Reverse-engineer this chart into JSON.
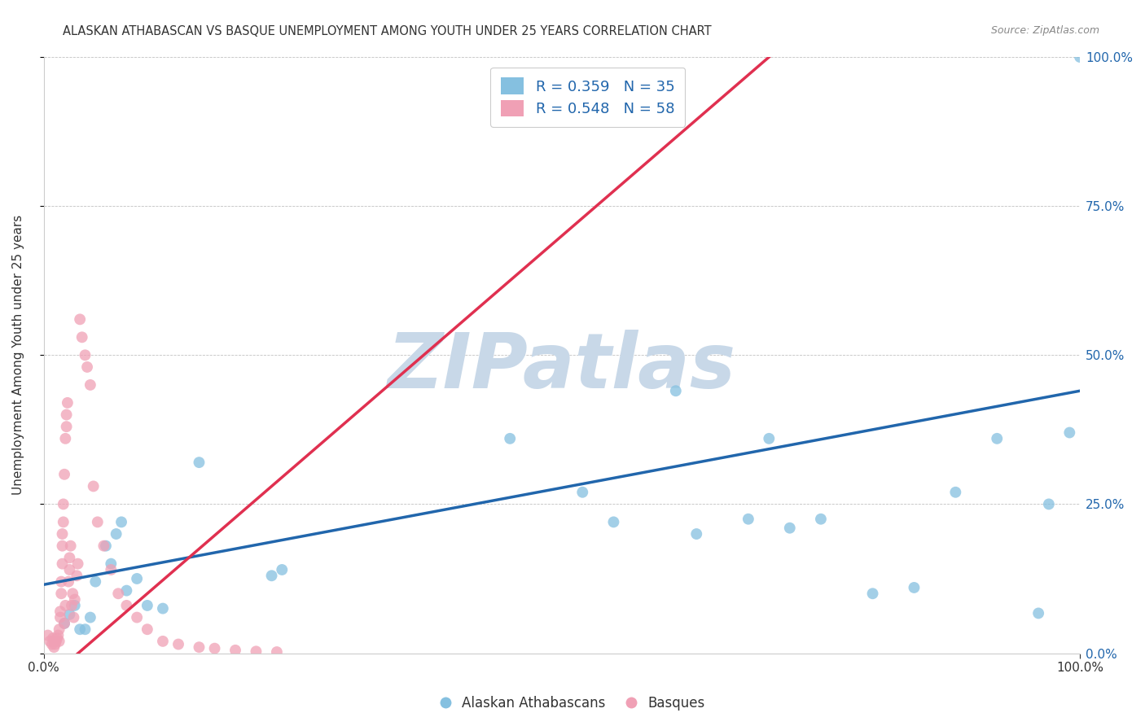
{
  "title": "ALASKAN ATHABASCAN VS BASQUE UNEMPLOYMENT AMONG YOUTH UNDER 25 YEARS CORRELATION CHART",
  "source": "Source: ZipAtlas.com",
  "ylabel": "Unemployment Among Youth under 25 years",
  "xlim": [
    0.0,
    1.0
  ],
  "ylim": [
    0.0,
    1.0
  ],
  "ytick_values": [
    0.0,
    0.25,
    0.5,
    0.75,
    1.0
  ],
  "ytick_labels_right": [
    "0.0%",
    "25.0%",
    "50.0%",
    "75.0%",
    "100.0%"
  ],
  "xtick_values": [
    0.0,
    1.0
  ],
  "xtick_labels": [
    "0.0%",
    "100.0%"
  ],
  "legend_blue_label": "R = 0.359   N = 35",
  "legend_pink_label": "R = 0.548   N = 58",
  "legend_footer_blue": "Alaskan Athabascans",
  "legend_footer_pink": "Basques",
  "watermark_text": "ZIPatlas",
  "watermark_color": "#c8d8e8",
  "blue_scatter_color": "#85c0e0",
  "blue_line_color": "#2166ac",
  "pink_scatter_color": "#f0a0b5",
  "pink_line_color": "#e03050",
  "legend_text_color": "#2166ac",
  "title_color": "#333333",
  "axis_color": "#cccccc",
  "blue_intercept": 0.115,
  "blue_slope": 0.325,
  "pink_intercept": -0.05,
  "pink_slope": 1.5,
  "blue_points_x": [
    0.02,
    0.025,
    0.03,
    0.035,
    0.04,
    0.045,
    0.05,
    0.06,
    0.065,
    0.07,
    0.075,
    0.08,
    0.09,
    0.1,
    0.115,
    0.15,
    0.22,
    0.23,
    0.45,
    0.52,
    0.55,
    0.61,
    0.63,
    0.68,
    0.7,
    0.72,
    0.75,
    0.8,
    0.84,
    0.88,
    0.92,
    0.96,
    0.97,
    0.99,
    1.0
  ],
  "blue_points_y": [
    0.05,
    0.065,
    0.08,
    0.04,
    0.04,
    0.06,
    0.12,
    0.18,
    0.15,
    0.2,
    0.22,
    0.105,
    0.125,
    0.08,
    0.075,
    0.32,
    0.13,
    0.14,
    0.36,
    0.27,
    0.22,
    0.44,
    0.2,
    0.225,
    0.36,
    0.21,
    0.225,
    0.1,
    0.11,
    0.27,
    0.36,
    0.067,
    0.25,
    0.37,
    1.0
  ],
  "pink_points_x": [
    0.004,
    0.006,
    0.008,
    0.009,
    0.01,
    0.01,
    0.011,
    0.012,
    0.013,
    0.014,
    0.015,
    0.015,
    0.016,
    0.016,
    0.017,
    0.017,
    0.018,
    0.018,
    0.018,
    0.019,
    0.019,
    0.02,
    0.02,
    0.021,
    0.021,
    0.022,
    0.022,
    0.023,
    0.024,
    0.025,
    0.025,
    0.026,
    0.027,
    0.028,
    0.029,
    0.03,
    0.032,
    0.033,
    0.035,
    0.037,
    0.04,
    0.042,
    0.045,
    0.048,
    0.052,
    0.058,
    0.065,
    0.072,
    0.08,
    0.09,
    0.1,
    0.115,
    0.13,
    0.15,
    0.165,
    0.185,
    0.205,
    0.225
  ],
  "pink_points_y": [
    0.03,
    0.02,
    0.015,
    0.025,
    0.01,
    0.02,
    0.015,
    0.02,
    0.025,
    0.03,
    0.02,
    0.04,
    0.06,
    0.07,
    0.1,
    0.12,
    0.15,
    0.18,
    0.2,
    0.22,
    0.25,
    0.3,
    0.05,
    0.08,
    0.36,
    0.38,
    0.4,
    0.42,
    0.12,
    0.14,
    0.16,
    0.18,
    0.08,
    0.1,
    0.06,
    0.09,
    0.13,
    0.15,
    0.56,
    0.53,
    0.5,
    0.48,
    0.45,
    0.28,
    0.22,
    0.18,
    0.14,
    0.1,
    0.08,
    0.06,
    0.04,
    0.02,
    0.015,
    0.01,
    0.008,
    0.005,
    0.003,
    0.002
  ]
}
